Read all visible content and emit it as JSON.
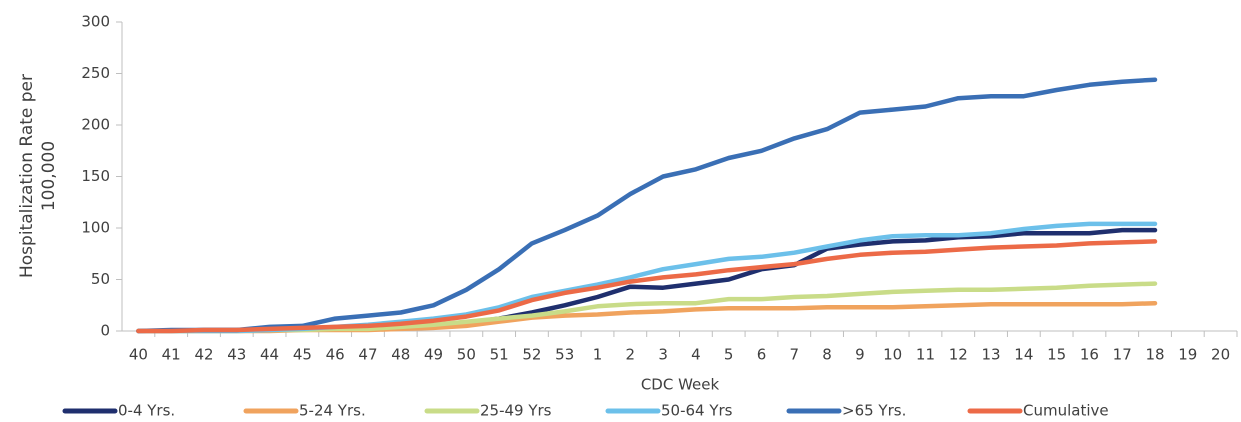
{
  "chart_data": {
    "type": "line",
    "y_label": "Hospitalization Rate per 100,000",
    "x_label": "CDC Week",
    "categories": [
      "40",
      "41",
      "42",
      "43",
      "44",
      "45",
      "46",
      "47",
      "48",
      "49",
      "50",
      "51",
      "52",
      "53",
      "1",
      "2",
      "3",
      "4",
      "5",
      "6",
      "7",
      "8",
      "9",
      "10",
      "11",
      "12",
      "13",
      "14",
      "15",
      "16",
      "17",
      "18",
      "19",
      "20"
    ],
    "ylim": [
      0,
      300
    ],
    "yticks": [
      0,
      50,
      100,
      150,
      200,
      250,
      300
    ],
    "grid": false,
    "series": [
      {
        "name": "0-4 Yrs.",
        "color": "#1f2f6e",
        "values": [
          0,
          0,
          1,
          1,
          2,
          2,
          3,
          3,
          3,
          4,
          8,
          12,
          18,
          25,
          33,
          43,
          42,
          46,
          50,
          60,
          64,
          80,
          84,
          87,
          88,
          91,
          92,
          95,
          95,
          95,
          98,
          98,
          null,
          null
        ]
      },
      {
        "name": "5-24 Yrs.",
        "color": "#f0a35e",
        "values": [
          0,
          0,
          0,
          0,
          0,
          1,
          1,
          1,
          2,
          3,
          5,
          9,
          13,
          15,
          16,
          18,
          19,
          21,
          22,
          22,
          22,
          23,
          23,
          23,
          24,
          25,
          26,
          26,
          26,
          26,
          26,
          27,
          null,
          null
        ]
      },
      {
        "name": "25-49 Yrs",
        "color": "#c9dc88",
        "values": [
          0,
          0,
          0,
          0,
          1,
          1,
          2,
          2,
          4,
          6,
          9,
          12,
          15,
          19,
          24,
          26,
          27,
          27,
          31,
          31,
          33,
          34,
          36,
          38,
          39,
          40,
          40,
          41,
          42,
          44,
          45,
          46,
          null,
          null
        ]
      },
      {
        "name": "50-64 Yrs",
        "color": "#6cc0ea",
        "values": [
          0,
          0,
          0,
          0,
          1,
          2,
          4,
          6,
          9,
          12,
          16,
          23,
          33,
          39,
          45,
          52,
          60,
          65,
          70,
          72,
          76,
          82,
          88,
          92,
          93,
          93,
          95,
          99,
          102,
          104,
          104,
          104,
          null,
          null
        ]
      },
      {
        "name": ">65 Yrs.",
        "color": "#3a6fb5",
        "values": [
          0,
          1,
          1,
          1,
          4,
          5,
          12,
          15,
          18,
          25,
          40,
          60,
          85,
          98,
          112,
          133,
          150,
          157,
          168,
          175,
          187,
          196,
          212,
          215,
          218,
          226,
          228,
          228,
          234,
          239,
          242,
          244,
          null,
          null
        ]
      },
      {
        "name": "Cumulative",
        "color": "#ec6a47",
        "values": [
          0,
          0,
          1,
          1,
          2,
          3,
          4,
          5,
          7,
          10,
          14,
          20,
          30,
          37,
          42,
          48,
          52,
          55,
          59,
          62,
          65,
          70,
          74,
          76,
          77,
          79,
          81,
          82,
          83,
          85,
          86,
          87,
          null,
          null
        ]
      }
    ]
  }
}
